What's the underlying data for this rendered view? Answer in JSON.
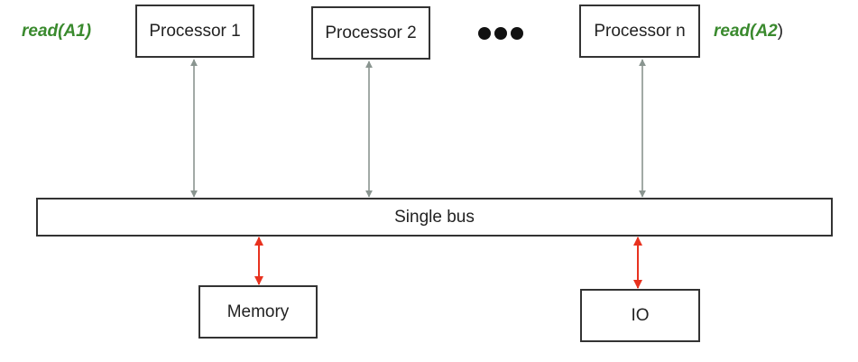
{
  "processors": [
    {
      "label": "Processor 1"
    },
    {
      "label": "Processor 2"
    },
    {
      "label": "Processor n"
    }
  ],
  "ellipsis": "•••",
  "bus": {
    "label": "Single bus"
  },
  "memory": {
    "label": "Memory"
  },
  "io": {
    "label": "IO"
  },
  "operations": {
    "left": {
      "text": "read(A1)",
      "color": "#3a8a2e"
    },
    "right": {
      "text": "read(A2",
      "suffix": ")",
      "color": "#3a8a2e"
    }
  },
  "colors": {
    "processor_links": "#8a9590",
    "memory_io_links": "#e8321f"
  }
}
